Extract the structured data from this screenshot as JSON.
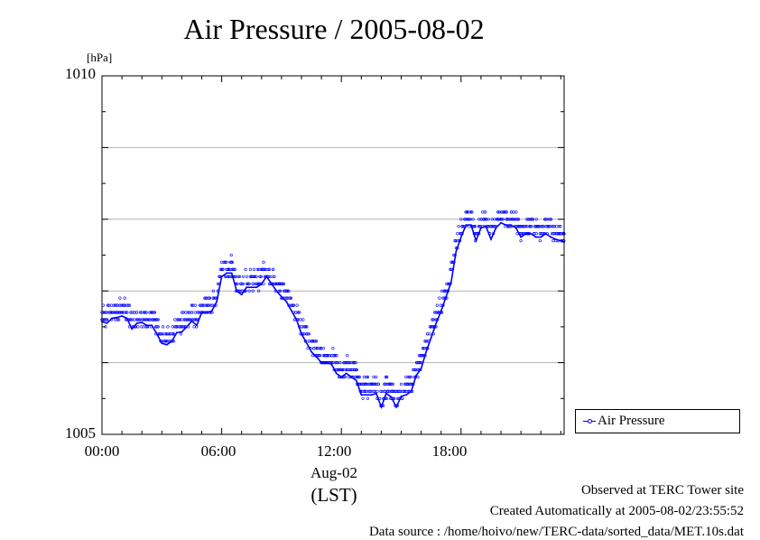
{
  "chart_data": {
    "type": "line",
    "title": "Air Pressure / 2005-08-02",
    "ylabel": "[hPa]",
    "ylim": [
      1005,
      1010
    ],
    "yticks": [
      {
        "value": 1010,
        "label": "1010"
      },
      {
        "value": 1005,
        "label": "1005"
      }
    ],
    "ygrid": [
      1006,
      1007,
      1008,
      1009
    ],
    "xlim": [
      0,
      23.167
    ],
    "xticks": [
      {
        "value": 0,
        "label": "00:00"
      },
      {
        "value": 6,
        "label": "06:00"
      },
      {
        "value": 12,
        "label": "12:00"
      },
      {
        "value": 18,
        "label": "18:00"
      }
    ],
    "date_label": "Aug-02",
    "xunit_label": "(LST)",
    "grid": true,
    "legend_position": "lower-right outside plot",
    "series": [
      {
        "name": "Air Pressure",
        "color": "#0000ff",
        "x": [
          0.0,
          0.25,
          0.5,
          0.75,
          1.0,
          1.25,
          1.5,
          1.75,
          2.0,
          2.25,
          2.5,
          2.75,
          3.0,
          3.25,
          3.5,
          3.75,
          4.0,
          4.25,
          4.5,
          4.75,
          5.0,
          5.25,
          5.5,
          5.75,
          6.0,
          6.25,
          6.5,
          6.75,
          7.0,
          7.25,
          7.5,
          7.75,
          8.0,
          8.25,
          8.5,
          8.75,
          9.0,
          9.25,
          9.5,
          9.75,
          10.0,
          10.25,
          10.5,
          10.75,
          11.0,
          11.25,
          11.5,
          11.75,
          12.0,
          12.25,
          12.5,
          12.75,
          13.0,
          13.25,
          13.5,
          13.75,
          14.0,
          14.25,
          14.5,
          14.75,
          15.0,
          15.25,
          15.5,
          15.75,
          16.0,
          16.25,
          16.5,
          16.75,
          17.0,
          17.25,
          17.5,
          17.75,
          18.0,
          18.25,
          18.5,
          18.75,
          19.0,
          19.25,
          19.5,
          19.75,
          20.0,
          20.25,
          20.5,
          20.75,
          21.0,
          21.25,
          21.5,
          21.75,
          22.0,
          22.25,
          22.5,
          22.75,
          23.0,
          23.167
        ],
        "values": [
          1006.57,
          1006.55,
          1006.62,
          1006.63,
          1006.65,
          1006.62,
          1006.47,
          1006.55,
          1006.56,
          1006.52,
          1006.52,
          1006.4,
          1006.27,
          1006.25,
          1006.3,
          1006.42,
          1006.43,
          1006.5,
          1006.58,
          1006.52,
          1006.7,
          1006.7,
          1006.72,
          1006.85,
          1007.2,
          1007.25,
          1007.25,
          1007.0,
          1006.95,
          1007.05,
          1007.05,
          1007.05,
          1007.1,
          1007.2,
          1007.1,
          1007.0,
          1006.92,
          1006.85,
          1006.72,
          1006.6,
          1006.4,
          1006.28,
          1006.15,
          1006.08,
          1006.0,
          1006.0,
          1005.98,
          1005.85,
          1005.8,
          1005.85,
          1005.8,
          1005.75,
          1005.55,
          1005.55,
          1005.55,
          1005.57,
          1005.38,
          1005.57,
          1005.52,
          1005.38,
          1005.53,
          1005.55,
          1005.6,
          1005.82,
          1005.92,
          1006.15,
          1006.35,
          1006.55,
          1006.72,
          1006.92,
          1007.12,
          1007.55,
          1007.75,
          1007.92,
          1007.92,
          1007.7,
          1007.88,
          1007.9,
          1007.72,
          1007.88,
          1007.95,
          1007.92,
          1007.92,
          1007.88,
          1007.75,
          1007.8,
          1007.8,
          1007.75,
          1007.75,
          1007.8,
          1007.75,
          1007.72,
          1007.7,
          1007.68
        ]
      }
    ]
  },
  "legend": {
    "label": "Air Pressure"
  },
  "footer": {
    "line1": "Observed at TERC Tower site",
    "line2": "Created Automatically at 2005-08-02/23:55:52",
    "line3": "Data source : /home/hoivo/new/TERC-data/sorted_data/MET.10s.dat"
  }
}
